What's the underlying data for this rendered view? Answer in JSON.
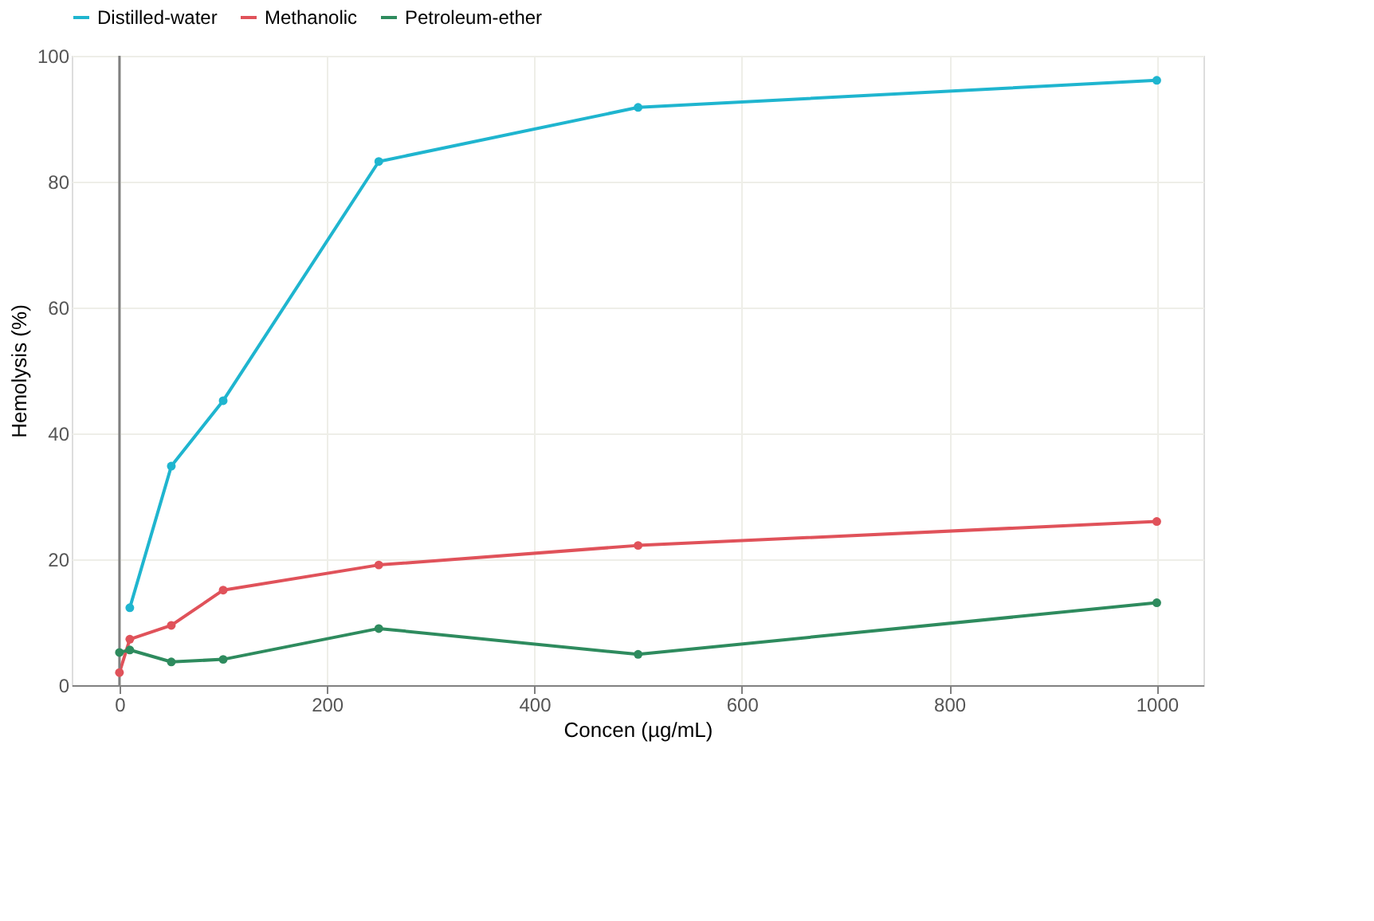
{
  "chart_data": {
    "type": "line",
    "xlabel": "Concen (µg/mL)",
    "ylabel": "Hemolysis (%)",
    "x": [
      0,
      10,
      50,
      100,
      250,
      500,
      1000
    ],
    "series": [
      {
        "name": "Distilled-water",
        "color": "#1fb5cf",
        "values": [
          null,
          12.3,
          34.8,
          45.2,
          83.2,
          91.8,
          96.1
        ]
      },
      {
        "name": "Methanolic",
        "color": "#e0525a",
        "values": [
          2.0,
          7.3,
          9.5,
          15.1,
          19.1,
          22.2,
          26.0
        ]
      },
      {
        "name": "Petroleum-ether",
        "color": "#2e8b5e",
        "values": [
          5.2,
          5.6,
          3.7,
          4.1,
          9.0,
          4.9,
          13.1
        ]
      }
    ],
    "xlim": [
      -46,
      1045
    ],
    "ylim": [
      0,
      100
    ],
    "xticks": [
      0,
      200,
      400,
      600,
      800,
      1000
    ],
    "yticks": [
      0,
      20,
      40,
      60,
      80,
      100
    ],
    "ref_lines": [
      {
        "axis": "x",
        "value": 0,
        "color": "#808080"
      }
    ],
    "grid": true,
    "legend": "top",
    "marker": "circle",
    "line_style": "solid"
  }
}
